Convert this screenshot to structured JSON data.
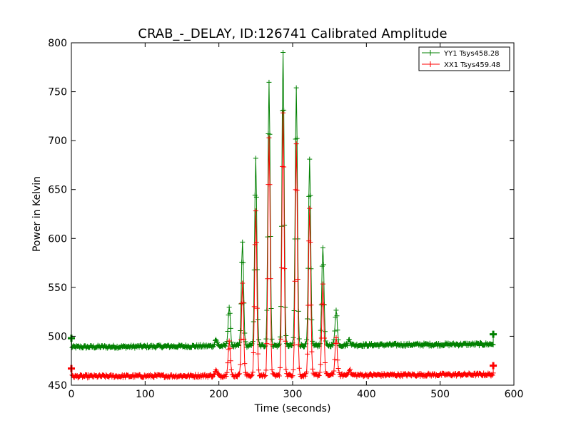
{
  "chart_data": {
    "type": "line",
    "title": "CRAB_-_DELAY, ID:126741 Calibrated Amplitude",
    "xlabel": "Time (seconds)",
    "ylabel": "Power in Kelvin",
    "xlim": [
      0,
      600
    ],
    "ylim": [
      450,
      800
    ],
    "x_ticks": [
      0,
      100,
      200,
      300,
      400,
      500,
      600
    ],
    "y_ticks": [
      450,
      500,
      550,
      600,
      650,
      700,
      750,
      800
    ],
    "grid": false,
    "legend_position": "top-right",
    "x_range_observed": [
      0,
      572
    ],
    "series": [
      {
        "name": "YY1 Tsys458.28",
        "color": "#008000",
        "marker": "+",
        "baseline": 489,
        "baseline_end": 492,
        "start_value": 498,
        "end_value": 502,
        "peaks": [
          {
            "x": 196,
            "y": 497
          },
          {
            "x": 214,
            "y": 530
          },
          {
            "x": 232,
            "y": 596
          },
          {
            "x": 250,
            "y": 681
          },
          {
            "x": 268,
            "y": 761
          },
          {
            "x": 287,
            "y": 790
          },
          {
            "x": 305,
            "y": 754
          },
          {
            "x": 323,
            "y": 680
          },
          {
            "x": 341,
            "y": 592
          },
          {
            "x": 359,
            "y": 528
          },
          {
            "x": 377,
            "y": 497
          }
        ]
      },
      {
        "name": "XX1 Tsys459.48",
        "color": "#ff0000",
        "marker": "+",
        "baseline": 459,
        "baseline_end": 461,
        "start_value": 467,
        "end_value": 470,
        "peaks": [
          {
            "x": 196,
            "y": 465
          },
          {
            "x": 214,
            "y": 495
          },
          {
            "x": 232,
            "y": 553
          },
          {
            "x": 250,
            "y": 628
          },
          {
            "x": 268,
            "y": 702
          },
          {
            "x": 287,
            "y": 727
          },
          {
            "x": 305,
            "y": 697
          },
          {
            "x": 323,
            "y": 631
          },
          {
            "x": 341,
            "y": 552
          },
          {
            "x": 359,
            "y": 500
          },
          {
            "x": 377,
            "y": 466
          }
        ]
      }
    ]
  }
}
